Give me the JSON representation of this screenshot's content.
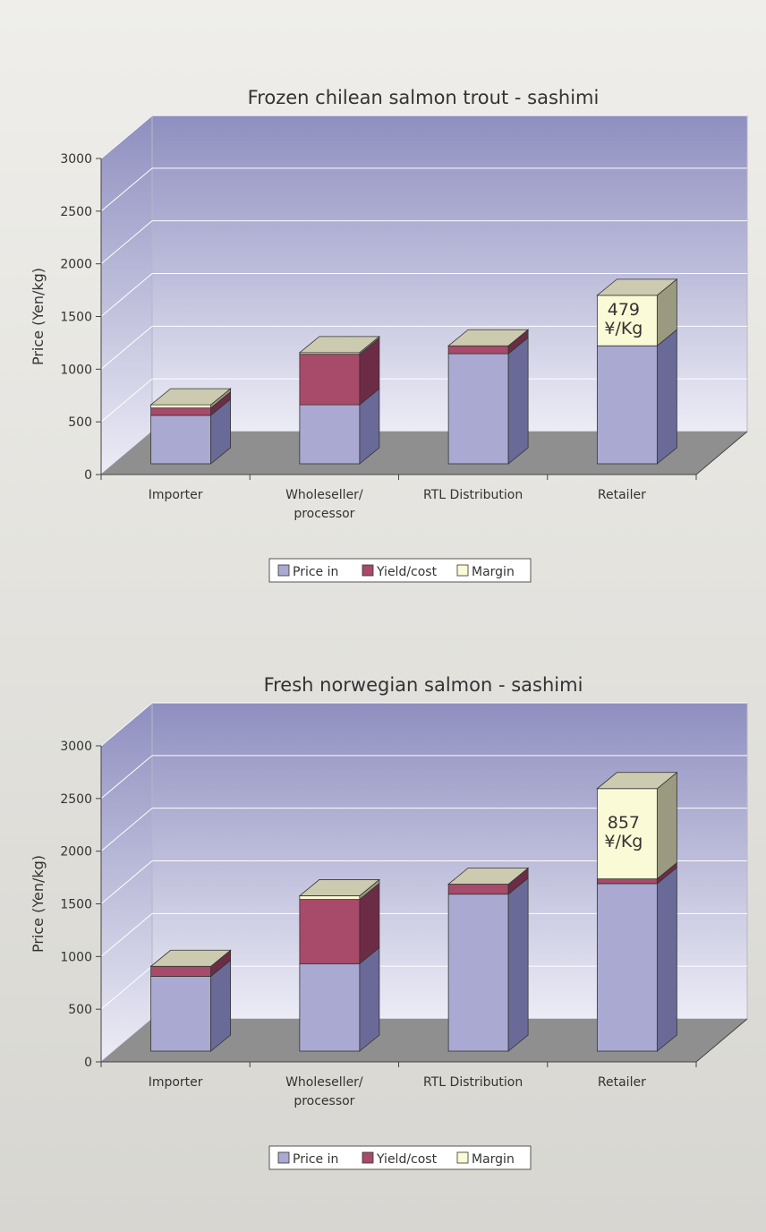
{
  "chart_data": [
    {
      "type": "bar",
      "stacked": true,
      "title": "Frozen chilean salmon trout - sashimi",
      "ylabel": "Price (Yen/kg)",
      "ylim": [
        0,
        3000
      ],
      "yticks": [
        "0",
        "500",
        "1000",
        "1500",
        "2000",
        "2500",
        "3000"
      ],
      "categories": [
        [
          "Importer"
        ],
        [
          "Wholeseller/",
          "processor"
        ],
        [
          "RTL Distribution"
        ],
        [
          "Retailer"
        ]
      ],
      "series": [
        {
          "name": "Price in",
          "values": [
            460,
            560,
            1045,
            1120
          ]
        },
        {
          "name": "Yield/cost",
          "values": [
            70,
            480,
            75,
            0
          ]
        },
        {
          "name": "Margin",
          "values": [
            30,
            15,
            0,
            479
          ]
        }
      ],
      "annotation": {
        "category_index": 3,
        "lines": [
          "479",
          "¥/Kg"
        ]
      },
      "legend": "bottom",
      "grid": true
    },
    {
      "type": "bar",
      "stacked": true,
      "title": "Fresh norwegian salmon - sashimi",
      "ylabel": "Price (Yen/kg)",
      "ylim": [
        0,
        3000
      ],
      "yticks": [
        "0",
        "500",
        "1000",
        "1500",
        "2000",
        "2500",
        "3000"
      ],
      "categories": [
        [
          "Importer"
        ],
        [
          "Wholeseller/",
          "processor"
        ],
        [
          "RTL Distribution"
        ],
        [
          "Retailer"
        ]
      ],
      "series": [
        {
          "name": "Price in",
          "values": [
            710,
            830,
            1490,
            1590
          ]
        },
        {
          "name": "Yield/cost",
          "values": [
            95,
            610,
            95,
            45
          ]
        },
        {
          "name": "Margin",
          "values": [
            0,
            35,
            0,
            857
          ]
        }
      ],
      "annotation": {
        "category_index": 3,
        "lines": [
          "857",
          "¥/Kg"
        ]
      },
      "legend": "bottom",
      "grid": true
    }
  ],
  "colors": {
    "price_in": "#aaa9d2",
    "price_in_side": "#6a6a98",
    "yield_cost": "#a84a6a",
    "yield_cost_side": "#6c2c46",
    "margin": "#fafad6",
    "margin_side": "#9a9a80",
    "top_face": "#cccbb0",
    "floor": "#8f8f8f",
    "wall_top": "#8f8fc0",
    "wall_bottom": "#ececf6",
    "background_top": "#efeeea",
    "background_bottom": "#d7d6d1"
  }
}
